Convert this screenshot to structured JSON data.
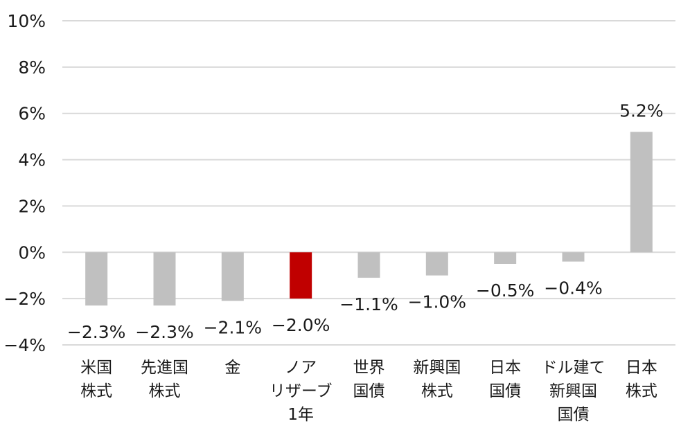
{
  "chart_data": {
    "type": "bar",
    "title": "",
    "xlabel": "",
    "ylabel": "",
    "ylim": [
      -4,
      10
    ],
    "yticks": [
      10,
      8,
      6,
      4,
      2,
      0,
      -2,
      -4
    ],
    "ytick_labels": [
      "10%",
      "8%",
      "6%",
      "4%",
      "2%",
      "0%",
      "−2%",
      "−4%"
    ],
    "grid": true,
    "legend": "none",
    "categories": [
      [
        "米国",
        "株式"
      ],
      [
        "先進国",
        "株式"
      ],
      [
        "金"
      ],
      [
        "ノア",
        "リザーブ",
        "1年"
      ],
      [
        "世界",
        "国債"
      ],
      [
        "新興国",
        "株式"
      ],
      [
        "日本",
        "国債"
      ],
      [
        "ドル建て",
        "新興国",
        "国債"
      ],
      [
        "日本",
        "株式"
      ]
    ],
    "values": [
      -2.3,
      -2.3,
      -2.1,
      -2.0,
      -1.1,
      -1.0,
      -0.5,
      -0.4,
      5.2
    ],
    "value_labels": [
      "−2.3%",
      "−2.3%",
      "−2.1%",
      "−2.0%",
      "−1.1%",
      "−1.0%",
      "−0.5%",
      "−0.4%",
      "5.2%"
    ],
    "colors": {
      "default_bar": "#c0c0c0",
      "highlight_bar": "#c00000",
      "gridline": "#d9d9d9"
    },
    "highlight_index": 3
  }
}
